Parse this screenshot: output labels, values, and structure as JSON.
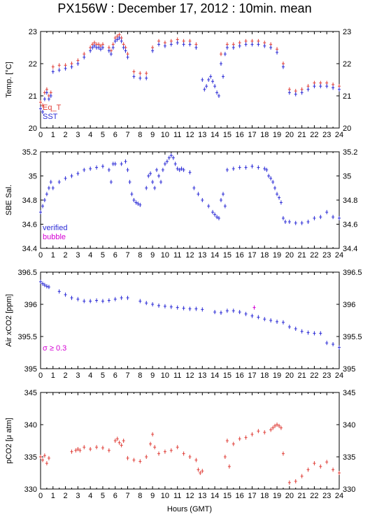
{
  "title": "PX156W : December 17, 2012 : 10min. mean",
  "xlabel": "Hours (GMT)",
  "colors": {
    "red": "#e0403a",
    "blue": "#2b2bd6",
    "magenta": "#d400d4",
    "frame": "#000000"
  },
  "chart_data": [
    {
      "type": "scatter",
      "ylabel": "Temp. [°C]",
      "xlim": [
        0,
        24
      ],
      "ylim": [
        20,
        23
      ],
      "xticks": [
        0,
        1,
        2,
        3,
        4,
        5,
        6,
        7,
        8,
        9,
        10,
        11,
        12,
        13,
        14,
        15,
        16,
        17,
        18,
        19,
        20,
        21,
        22,
        23,
        24
      ],
      "yticks": [
        20,
        21,
        22,
        23
      ],
      "legend": [
        "Eq_T",
        "SST"
      ],
      "series": [
        {
          "name": "Eq_T",
          "color": "#e0403a",
          "x": [
            0.0,
            0.17,
            0.33,
            0.5,
            0.67,
            0.83,
            1.0,
            1.5,
            2.0,
            2.5,
            3.0,
            3.5,
            4.0,
            4.17,
            4.33,
            4.5,
            4.67,
            4.83,
            5.0,
            5.5,
            5.67,
            5.83,
            6.0,
            6.17,
            6.33,
            6.5,
            6.67,
            6.83,
            7.0,
            7.5,
            8.0,
            8.5,
            9.0,
            9.5,
            10.0,
            10.5,
            11.0,
            11.5,
            12.0,
            12.5,
            14.5,
            15.0,
            15.5,
            16.0,
            16.5,
            17.0,
            17.5,
            18.0,
            18.5,
            19.0,
            19.5,
            20.0,
            20.5,
            21.0,
            21.5,
            22.0,
            22.5,
            23.0,
            23.5,
            24.0
          ],
          "y": [
            20.8,
            20.7,
            21.1,
            21.2,
            21.0,
            21.1,
            21.9,
            21.95,
            21.95,
            22.0,
            22.1,
            22.3,
            22.5,
            22.6,
            22.65,
            22.6,
            22.6,
            22.55,
            22.6,
            22.5,
            22.4,
            22.6,
            22.8,
            22.85,
            22.9,
            22.8,
            22.6,
            22.5,
            22.3,
            21.75,
            21.7,
            21.7,
            22.5,
            22.7,
            22.65,
            22.7,
            22.75,
            22.7,
            22.7,
            22.6,
            22.3,
            22.6,
            22.6,
            22.65,
            22.7,
            22.7,
            22.7,
            22.65,
            22.6,
            22.45,
            22.0,
            21.2,
            21.15,
            21.2,
            21.3,
            21.4,
            21.4,
            21.4,
            21.35,
            21.3
          ]
        },
        {
          "name": "SST",
          "color": "#2b2bd6",
          "x": [
            0.0,
            0.17,
            0.33,
            0.5,
            0.67,
            0.83,
            1.0,
            1.5,
            2.0,
            2.5,
            3.0,
            3.5,
            4.0,
            4.17,
            4.33,
            4.5,
            4.67,
            4.83,
            5.0,
            5.5,
            5.67,
            5.83,
            6.0,
            6.17,
            6.33,
            6.5,
            6.67,
            6.83,
            7.0,
            7.5,
            8.0,
            8.5,
            9.0,
            9.5,
            10.0,
            10.5,
            11.0,
            11.5,
            12.0,
            12.5,
            13.0,
            13.17,
            13.33,
            13.5,
            13.67,
            13.83,
            14.0,
            14.17,
            14.33,
            14.5,
            14.67,
            14.83,
            15.0,
            15.5,
            16.0,
            16.5,
            17.0,
            17.5,
            18.0,
            18.5,
            19.0,
            19.5,
            20.0,
            20.5,
            21.0,
            21.5,
            22.0,
            22.5,
            23.0,
            23.5,
            24.0
          ],
          "y": [
            20.6,
            20.5,
            20.9,
            21.1,
            20.9,
            21.0,
            21.75,
            21.8,
            21.85,
            21.9,
            22.0,
            22.2,
            22.4,
            22.5,
            22.55,
            22.5,
            22.5,
            22.45,
            22.5,
            22.4,
            22.3,
            22.5,
            22.7,
            22.75,
            22.8,
            22.7,
            22.5,
            22.4,
            22.2,
            21.6,
            21.55,
            21.55,
            22.4,
            22.6,
            22.55,
            22.6,
            22.65,
            22.6,
            22.6,
            22.5,
            21.5,
            21.2,
            21.3,
            21.5,
            21.6,
            21.45,
            21.3,
            21.1,
            21.0,
            22.0,
            21.6,
            22.3,
            22.5,
            22.5,
            22.55,
            22.6,
            22.6,
            22.6,
            22.55,
            22.5,
            22.35,
            21.9,
            21.1,
            21.05,
            21.1,
            21.2,
            21.3,
            21.3,
            21.3,
            21.25,
            21.2
          ]
        }
      ]
    },
    {
      "type": "scatter",
      "ylabel": "SBE Sal.",
      "xlim": [
        0,
        24
      ],
      "ylim": [
        34.4,
        35.2
      ],
      "xticks": [
        0,
        1,
        2,
        3,
        4,
        5,
        6,
        7,
        8,
        9,
        10,
        11,
        12,
        13,
        14,
        15,
        16,
        17,
        18,
        19,
        20,
        21,
        22,
        23,
        24
      ],
      "yticks": [
        34.4,
        34.6,
        34.8,
        35,
        35.2
      ],
      "legend": [
        "verified",
        "bubble"
      ],
      "series": [
        {
          "name": "verified",
          "color": "#2b2bd6",
          "x": [
            0.0,
            0.17,
            0.33,
            0.5,
            0.67,
            0.83,
            1.0,
            1.5,
            2.0,
            2.5,
            3.0,
            3.5,
            4.0,
            4.5,
            5.0,
            5.5,
            5.67,
            5.83,
            6.0,
            6.5,
            6.83,
            7.0,
            7.17,
            7.33,
            7.5,
            7.67,
            7.83,
            8.0,
            8.5,
            8.67,
            8.83,
            9.0,
            9.17,
            9.33,
            9.5,
            9.67,
            9.83,
            10.0,
            10.17,
            10.33,
            10.5,
            10.67,
            10.83,
            11.0,
            11.17,
            11.33,
            11.5,
            12.0,
            12.33,
            12.67,
            13.0,
            13.5,
            13.83,
            14.0,
            14.17,
            14.33,
            14.5,
            14.67,
            14.83,
            15.0,
            15.5,
            16.0,
            16.5,
            17.0,
            17.5,
            18.0,
            18.17,
            18.33,
            18.5,
            18.67,
            18.83,
            19.0,
            19.17,
            19.33,
            19.5,
            19.67,
            20.0,
            20.5,
            21.0,
            21.5,
            22.0,
            22.5,
            23.0,
            23.5,
            24.0
          ],
          "y": [
            34.7,
            34.75,
            34.8,
            34.85,
            34.9,
            34.95,
            34.9,
            34.95,
            34.98,
            35.0,
            35.02,
            35.05,
            35.06,
            35.07,
            35.08,
            35.05,
            34.95,
            35.1,
            35.1,
            35.1,
            35.12,
            35.05,
            34.95,
            34.85,
            34.8,
            34.78,
            34.77,
            34.76,
            34.9,
            35.0,
            35.02,
            34.95,
            34.9,
            35.05,
            35.0,
            34.95,
            35.05,
            35.1,
            35.12,
            35.15,
            35.17,
            35.15,
            35.1,
            35.06,
            35.05,
            35.06,
            35.05,
            35.03,
            34.9,
            34.85,
            34.8,
            34.75,
            34.7,
            34.68,
            34.66,
            34.65,
            34.8,
            34.85,
            34.75,
            35.05,
            35.06,
            35.07,
            35.07,
            35.08,
            35.07,
            35.06,
            35.05,
            35.0,
            34.98,
            34.95,
            34.9,
            34.85,
            34.82,
            34.78,
            34.65,
            34.62,
            34.62,
            34.61,
            34.61,
            34.62,
            34.65,
            34.66,
            34.7,
            34.66,
            34.65
          ]
        }
      ]
    },
    {
      "type": "scatter",
      "ylabel": "Air xCO2 [ppm]",
      "xlim": [
        0,
        24
      ],
      "ylim": [
        395,
        396.5
      ],
      "xticks": [
        0,
        1,
        2,
        3,
        4,
        5,
        6,
        7,
        8,
        9,
        10,
        11,
        12,
        13,
        14,
        15,
        16,
        17,
        18,
        19,
        20,
        21,
        22,
        23,
        24
      ],
      "yticks": [
        395,
        395.5,
        396,
        396.5
      ],
      "legend": [
        "σ ≥ 0.3"
      ],
      "series": [
        {
          "name": "xCO2",
          "color": "#2b2bd6",
          "x": [
            0.0,
            0.17,
            0.33,
            0.5,
            0.67,
            1.5,
            2.0,
            2.5,
            3.0,
            3.5,
            4.0,
            4.5,
            5.0,
            5.5,
            6.0,
            6.5,
            7.0,
            8.0,
            8.5,
            9.0,
            9.5,
            10.0,
            10.5,
            11.0,
            11.5,
            12.0,
            12.5,
            13.0,
            14.0,
            14.5,
            15.0,
            15.5,
            16.0,
            16.5,
            17.0,
            17.5,
            18.0,
            18.5,
            19.0,
            19.5,
            20.0,
            20.5,
            21.0,
            21.5,
            22.0,
            22.5,
            23.0,
            23.5,
            24.0
          ],
          "y": [
            396.35,
            396.32,
            396.3,
            396.28,
            396.27,
            396.2,
            396.15,
            396.1,
            396.08,
            396.05,
            396.05,
            396.06,
            396.05,
            396.06,
            396.08,
            396.1,
            396.1,
            396.05,
            396.02,
            396.0,
            395.98,
            395.97,
            395.96,
            395.95,
            395.94,
            395.93,
            395.93,
            395.92,
            395.88,
            395.87,
            395.9,
            395.9,
            395.88,
            395.85,
            395.82,
            395.8,
            395.77,
            395.75,
            395.73,
            395.72,
            395.65,
            395.62,
            395.58,
            395.56,
            395.55,
            395.55,
            395.4,
            395.38,
            395.33
          ]
        },
        {
          "name": "σ ≥ 0.3",
          "color": "#d400d4",
          "x": [
            17.17
          ],
          "y": [
            395.95
          ]
        }
      ]
    },
    {
      "type": "scatter",
      "ylabel": "pCO2 [μ atm]",
      "xlim": [
        0,
        24
      ],
      "ylim": [
        330,
        345
      ],
      "xticks": [
        0,
        1,
        2,
        3,
        4,
        5,
        6,
        7,
        8,
        9,
        10,
        11,
        12,
        13,
        14,
        15,
        16,
        17,
        18,
        19,
        20,
        21,
        22,
        23,
        24
      ],
      "yticks": [
        330,
        335,
        340,
        345
      ],
      "series": [
        {
          "name": "pCO2",
          "color": "#e0403a",
          "x": [
            0.0,
            0.17,
            0.33,
            0.5,
            0.67,
            2.5,
            2.83,
            3.0,
            3.17,
            3.5,
            4.0,
            4.5,
            5.0,
            5.5,
            6.0,
            6.17,
            6.33,
            6.5,
            6.67,
            7.0,
            7.5,
            8.0,
            8.5,
            8.83,
            9.0,
            9.17,
            9.5,
            10.0,
            10.5,
            11.0,
            11.5,
            12.0,
            12.5,
            12.67,
            12.83,
            13.0,
            14.83,
            15.0,
            15.17,
            15.5,
            16.0,
            16.5,
            17.0,
            17.5,
            18.0,
            18.5,
            18.67,
            18.83,
            19.0,
            19.17,
            19.33,
            19.5,
            20.0,
            20.5,
            21.0,
            21.5,
            22.0,
            22.5,
            23.0,
            23.5,
            24.0
          ],
          "y": [
            335.0,
            334.5,
            335.2,
            334.0,
            334.8,
            335.8,
            336.0,
            336.2,
            336.0,
            336.5,
            336.2,
            336.5,
            336.4,
            336.0,
            337.5,
            337.8,
            337.2,
            336.8,
            337.5,
            334.8,
            334.5,
            334.3,
            335.0,
            337.0,
            338.5,
            336.5,
            335.5,
            335.8,
            336.0,
            336.5,
            335.5,
            335.0,
            334.5,
            333.0,
            332.5,
            332.8,
            335.0,
            337.5,
            333.5,
            337.0,
            337.8,
            338.0,
            338.5,
            339.0,
            338.8,
            339.2,
            339.5,
            339.8,
            340.0,
            339.8,
            339.5,
            335.5,
            331.0,
            331.2,
            332.0,
            333.0,
            334.0,
            333.5,
            334.2,
            333.0,
            332.5
          ]
        }
      ]
    }
  ]
}
